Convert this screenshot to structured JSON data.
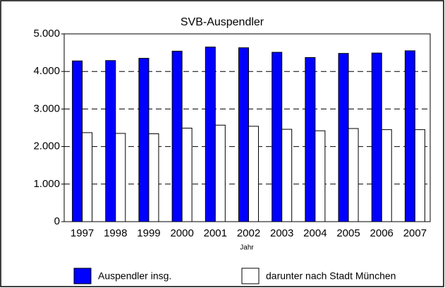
{
  "chart_data": {
    "type": "bar",
    "title": "SVB-Auspendler",
    "x_label": "Jahr",
    "categories": [
      "1997",
      "1998",
      "1999",
      "2000",
      "2001",
      "2002",
      "2003",
      "2004",
      "2005",
      "2006",
      "2007"
    ],
    "series": [
      {
        "name": "Auspendler insg.",
        "color": "#0000ff",
        "values": [
          4280,
          4290,
          4350,
          4540,
          4650,
          4630,
          4510,
          4370,
          4480,
          4490,
          4550
        ]
      },
      {
        "name": "darunter nach Stadt München",
        "color": "#ffffff",
        "values": [
          2370,
          2350,
          2340,
          2490,
          2570,
          2540,
          2460,
          2420,
          2480,
          2450,
          2450
        ]
      }
    ],
    "ylim": [
      0,
      5000
    ],
    "yticks": [
      0,
      {
        "value": 1000,
        "label": "1.000"
      },
      {
        "value": 2000,
        "label": "2.000"
      },
      {
        "value": 3000,
        "label": "3.000"
      },
      {
        "value": 4000,
        "label": "4.000"
      },
      {
        "value": 5000,
        "label": "5.000"
      }
    ],
    "grid": true,
    "legend": "bottom"
  }
}
